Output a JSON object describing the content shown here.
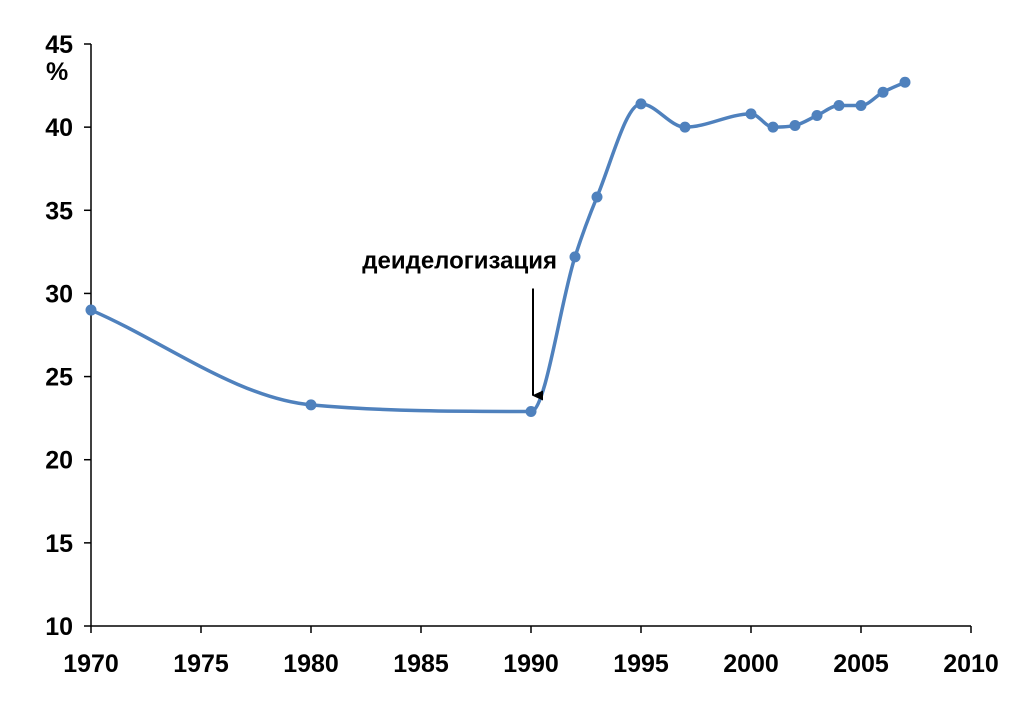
{
  "chart_data": {
    "type": "line",
    "title": "",
    "xlabel": "",
    "ylabel": "%",
    "xlim": [
      1970,
      2010
    ],
    "ylim": [
      10,
      45
    ],
    "x_ticks": [
      "1970",
      "1975",
      "1980",
      "1985",
      "1990",
      "1995",
      "2000",
      "2005",
      "2010"
    ],
    "y_ticks": [
      "10",
      "15",
      "20",
      "25",
      "30",
      "35",
      "40",
      "45"
    ],
    "grid": false,
    "legend": "none",
    "smooth": true,
    "series": [
      {
        "color": "#4f81bd",
        "points": [
          {
            "x": 1970,
            "y": 29.0
          },
          {
            "x": 1980,
            "y": 23.3
          },
          {
            "x": 1990,
            "y": 22.9
          },
          {
            "x": 1992,
            "y": 32.2
          },
          {
            "x": 1993,
            "y": 35.8
          },
          {
            "x": 1995,
            "y": 41.4
          },
          {
            "x": 1997,
            "y": 40.0
          },
          {
            "x": 2000,
            "y": 40.8
          },
          {
            "x": 2001,
            "y": 40.0
          },
          {
            "x": 2002,
            "y": 40.1
          },
          {
            "x": 2003,
            "y": 40.7
          },
          {
            "x": 2004,
            "y": 41.3
          },
          {
            "x": 2005,
            "y": 41.3
          },
          {
            "x": 2006,
            "y": 42.1
          },
          {
            "x": 2007,
            "y": 42.7
          }
        ]
      }
    ],
    "annotations": [
      {
        "text": "деиделогизация",
        "x": 1990,
        "y": 22.9,
        "arrow": "down"
      }
    ]
  }
}
